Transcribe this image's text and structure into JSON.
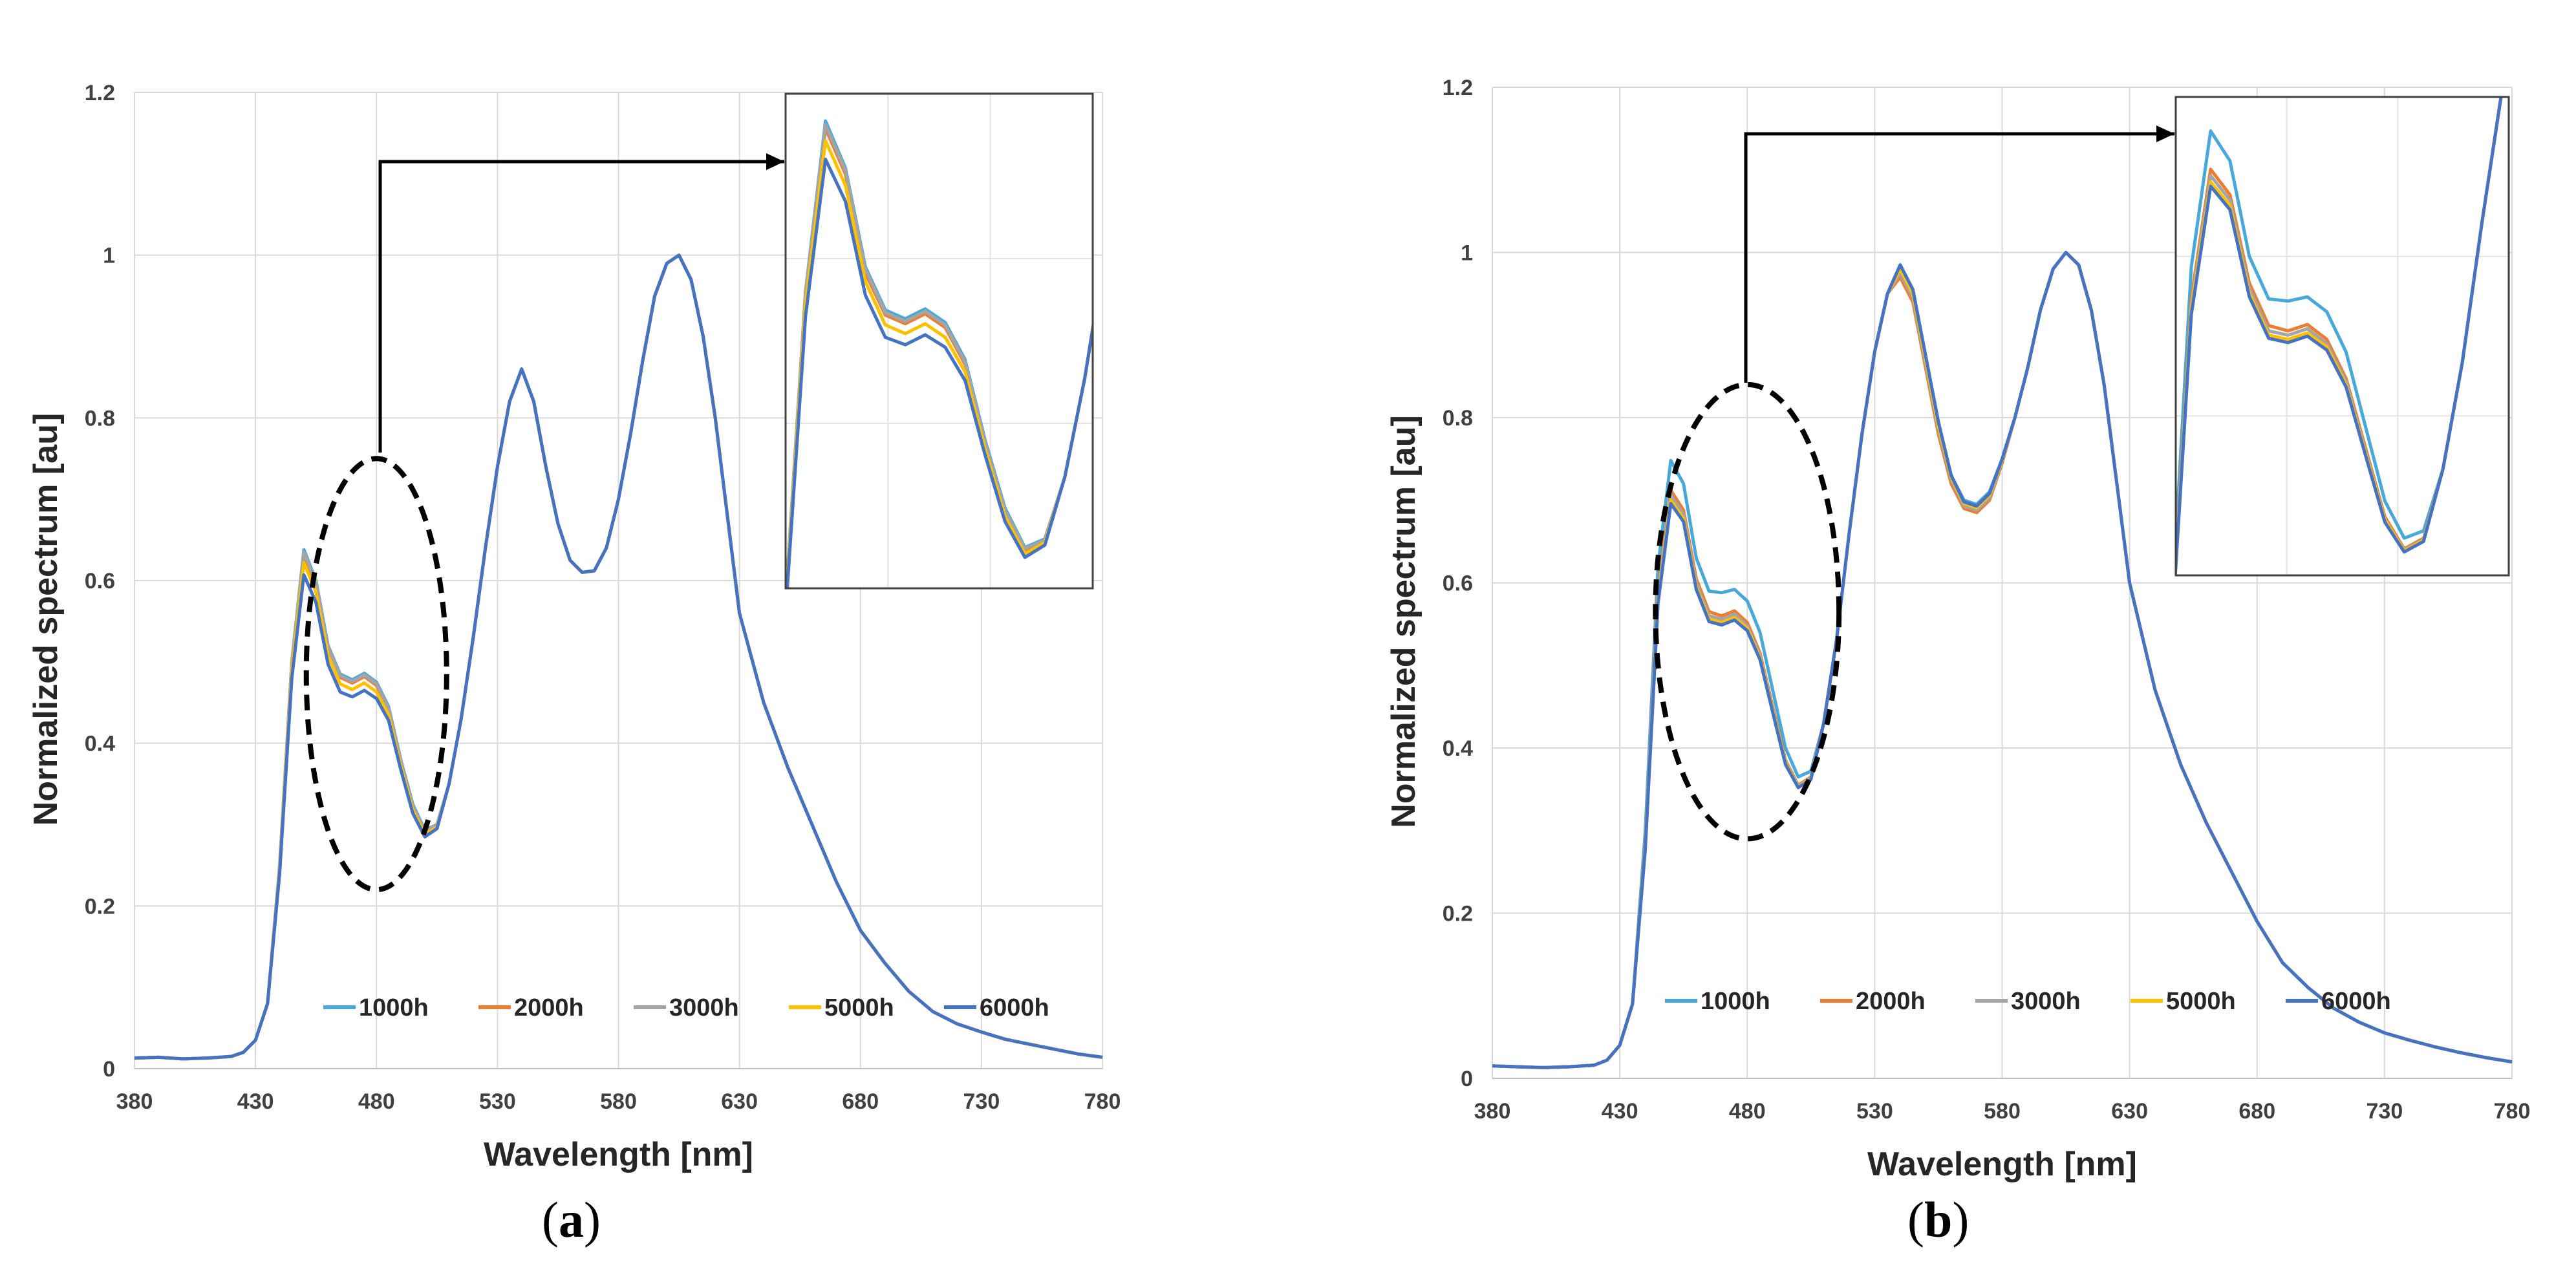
{
  "chart_data": [
    {
      "type": "line",
      "panel": "a",
      "caption_open": "(",
      "caption_letter": "a",
      "caption_close": ")",
      "xlabel": "Wavelength [nm]",
      "ylabel": "Normalized spectrum [au]",
      "xlim": [
        380,
        780
      ],
      "ylim": [
        0,
        1.2
      ],
      "xticks": [
        380,
        430,
        480,
        530,
        580,
        630,
        680,
        730,
        780
      ],
      "yticks": [
        0,
        0.2,
        0.4,
        0.6,
        0.8,
        1,
        1.2
      ],
      "ytick_labels": [
        "0",
        "0.2",
        "0.4",
        "0.6",
        "0.8",
        "1",
        "1.2"
      ],
      "grid": true,
      "legend_position": "bottom-center",
      "inset": {
        "x_range": [
          440,
          517
        ],
        "y_range": [
          0.26,
          0.66
        ],
        "zoom_region": "blue peak 430-530 nm"
      },
      "ellipse": {
        "cx": 480,
        "cy": 0.485,
        "rx": 29,
        "ry": 0.265
      },
      "x": [
        380,
        390,
        400,
        410,
        420,
        425,
        430,
        435,
        440,
        445,
        450,
        455,
        460,
        465,
        470,
        475,
        480,
        485,
        490,
        495,
        500,
        505,
        510,
        515,
        520,
        525,
        530,
        535,
        540,
        545,
        550,
        555,
        560,
        565,
        570,
        575,
        580,
        585,
        590,
        595,
        600,
        605,
        610,
        615,
        620,
        625,
        630,
        640,
        650,
        660,
        670,
        680,
        690,
        700,
        710,
        720,
        730,
        740,
        750,
        760,
        770,
        780
      ],
      "series": [
        {
          "name": "1000h",
          "color": "#47A8DB",
          "values": [
            0.013,
            0.014,
            0.012,
            0.013,
            0.015,
            0.02,
            0.035,
            0.08,
            0.25,
            0.5,
            0.638,
            0.6,
            0.52,
            0.485,
            0.478,
            0.486,
            0.475,
            0.445,
            0.38,
            0.325,
            0.293,
            0.3,
            0.35,
            0.43,
            0.53,
            0.64,
            0.74,
            0.82,
            0.86,
            0.82,
            0.74,
            0.67,
            0.625,
            0.61,
            0.612,
            0.64,
            0.7,
            0.78,
            0.87,
            0.95,
            0.99,
            1.0,
            0.97,
            0.9,
            0.8,
            0.68,
            0.56,
            0.45,
            0.37,
            0.3,
            0.23,
            0.17,
            0.13,
            0.095,
            0.07,
            0.055,
            0.045,
            0.036,
            0.03,
            0.024,
            0.018,
            0.014
          ]
        },
        {
          "name": "2000h",
          "color": "#ED7D31",
          "values": [
            0.013,
            0.014,
            0.012,
            0.013,
            0.015,
            0.02,
            0.035,
            0.08,
            0.248,
            0.497,
            0.632,
            0.595,
            0.515,
            0.481,
            0.474,
            0.482,
            0.471,
            0.441,
            0.377,
            0.322,
            0.291,
            0.298,
            0.35,
            0.43,
            0.53,
            0.64,
            0.74,
            0.82,
            0.86,
            0.82,
            0.74,
            0.67,
            0.625,
            0.61,
            0.612,
            0.64,
            0.7,
            0.78,
            0.87,
            0.95,
            0.99,
            1.0,
            0.97,
            0.9,
            0.8,
            0.68,
            0.56,
            0.45,
            0.37,
            0.3,
            0.23,
            0.17,
            0.13,
            0.095,
            0.07,
            0.055,
            0.045,
            0.036,
            0.03,
            0.024,
            0.018,
            0.014
          ]
        },
        {
          "name": "3000h",
          "color": "#A5A5A5",
          "values": [
            0.013,
            0.014,
            0.012,
            0.013,
            0.015,
            0.02,
            0.035,
            0.08,
            0.249,
            0.499,
            0.635,
            0.598,
            0.518,
            0.483,
            0.476,
            0.484,
            0.473,
            0.443,
            0.378,
            0.323,
            0.292,
            0.299,
            0.35,
            0.43,
            0.53,
            0.64,
            0.74,
            0.82,
            0.86,
            0.82,
            0.74,
            0.67,
            0.625,
            0.61,
            0.612,
            0.64,
            0.7,
            0.78,
            0.87,
            0.95,
            0.99,
            1.0,
            0.97,
            0.9,
            0.8,
            0.68,
            0.56,
            0.45,
            0.37,
            0.3,
            0.23,
            0.17,
            0.13,
            0.095,
            0.07,
            0.055,
            0.045,
            0.036,
            0.03,
            0.024,
            0.018,
            0.014
          ]
        },
        {
          "name": "5000h",
          "color": "#FFC000",
          "values": [
            0.013,
            0.014,
            0.012,
            0.013,
            0.015,
            0.02,
            0.035,
            0.08,
            0.244,
            0.49,
            0.622,
            0.586,
            0.508,
            0.473,
            0.466,
            0.474,
            0.463,
            0.435,
            0.373,
            0.318,
            0.288,
            0.297,
            0.35,
            0.43,
            0.53,
            0.64,
            0.74,
            0.82,
            0.86,
            0.82,
            0.74,
            0.67,
            0.625,
            0.61,
            0.612,
            0.64,
            0.7,
            0.78,
            0.87,
            0.95,
            0.99,
            1.0,
            0.97,
            0.9,
            0.8,
            0.68,
            0.56,
            0.45,
            0.37,
            0.3,
            0.23,
            0.17,
            0.13,
            0.095,
            0.07,
            0.055,
            0.045,
            0.036,
            0.03,
            0.024,
            0.018,
            0.014
          ]
        },
        {
          "name": "6000h",
          "color": "#4472C4",
          "values": [
            0.013,
            0.014,
            0.012,
            0.013,
            0.015,
            0.02,
            0.035,
            0.08,
            0.24,
            0.48,
            0.607,
            0.573,
            0.497,
            0.463,
            0.457,
            0.465,
            0.455,
            0.428,
            0.368,
            0.314,
            0.285,
            0.295,
            0.35,
            0.43,
            0.53,
            0.64,
            0.74,
            0.82,
            0.86,
            0.82,
            0.74,
            0.67,
            0.625,
            0.61,
            0.612,
            0.64,
            0.7,
            0.78,
            0.87,
            0.95,
            0.99,
            1.0,
            0.97,
            0.9,
            0.8,
            0.68,
            0.56,
            0.45,
            0.37,
            0.3,
            0.23,
            0.17,
            0.13,
            0.095,
            0.07,
            0.055,
            0.045,
            0.036,
            0.03,
            0.024,
            0.018,
            0.014
          ]
        }
      ]
    },
    {
      "type": "line",
      "panel": "b",
      "caption_open": "(",
      "caption_letter": "b",
      "caption_close": ")",
      "xlabel": "Wavelength [nm]",
      "ylabel": "Normalized spectrum [au]",
      "xlim": [
        380,
        780
      ],
      "ylim": [
        0,
        1.2
      ],
      "xticks": [
        380,
        430,
        480,
        530,
        580,
        630,
        680,
        730,
        780
      ],
      "yticks": [
        0,
        0.2,
        0.4,
        0.6,
        0.8,
        1,
        1.2
      ],
      "ytick_labels": [
        "0",
        "0.2",
        "0.4",
        "0.6",
        "0.8",
        "1",
        "1.2"
      ],
      "grid": true,
      "legend_position": "bottom-center",
      "inset": {
        "x_range": [
          441,
          527
        ],
        "y_range": [
          0.33,
          0.78
        ],
        "zoom_region": "blue peak 430-530 nm"
      },
      "ellipse": {
        "cx": 480,
        "cy": 0.565,
        "rx": 36,
        "ry": 0.275
      },
      "x": [
        380,
        390,
        400,
        410,
        420,
        425,
        430,
        435,
        440,
        445,
        450,
        455,
        460,
        465,
        470,
        475,
        480,
        485,
        490,
        495,
        500,
        505,
        510,
        515,
        520,
        525,
        530,
        535,
        540,
        545,
        550,
        555,
        560,
        565,
        570,
        575,
        580,
        585,
        590,
        595,
        600,
        605,
        610,
        615,
        620,
        625,
        630,
        640,
        650,
        660,
        670,
        680,
        690,
        700,
        710,
        720,
        730,
        740,
        750,
        760,
        770,
        780
      ],
      "series": [
        {
          "name": "1000h",
          "color": "#47A8DB",
          "values": [
            0.015,
            0.014,
            0.013,
            0.014,
            0.016,
            0.022,
            0.04,
            0.09,
            0.3,
            0.62,
            0.748,
            0.72,
            0.63,
            0.59,
            0.588,
            0.592,
            0.578,
            0.54,
            0.47,
            0.4,
            0.365,
            0.372,
            0.43,
            0.53,
            0.66,
            0.78,
            0.88,
            0.95,
            0.985,
            0.95,
            0.87,
            0.79,
            0.73,
            0.7,
            0.695,
            0.71,
            0.75,
            0.8,
            0.86,
            0.93,
            0.98,
            1.0,
            0.985,
            0.93,
            0.84,
            0.72,
            0.6,
            0.47,
            0.38,
            0.31,
            0.25,
            0.19,
            0.14,
            0.11,
            0.085,
            0.068,
            0.055,
            0.046,
            0.038,
            0.031,
            0.025,
            0.02
          ]
        },
        {
          "name": "2000h",
          "color": "#ED7D31",
          "values": [
            0.015,
            0.014,
            0.013,
            0.014,
            0.016,
            0.022,
            0.04,
            0.09,
            0.285,
            0.59,
            0.712,
            0.688,
            0.605,
            0.565,
            0.56,
            0.566,
            0.552,
            0.515,
            0.45,
            0.385,
            0.355,
            0.365,
            0.43,
            0.53,
            0.66,
            0.78,
            0.88,
            0.95,
            0.97,
            0.94,
            0.86,
            0.78,
            0.72,
            0.69,
            0.685,
            0.7,
            0.745,
            0.8,
            0.86,
            0.93,
            0.98,
            1.0,
            0.985,
            0.93,
            0.84,
            0.72,
            0.6,
            0.47,
            0.38,
            0.31,
            0.25,
            0.19,
            0.14,
            0.11,
            0.085,
            0.068,
            0.055,
            0.046,
            0.038,
            0.031,
            0.025,
            0.02
          ]
        },
        {
          "name": "3000h",
          "color": "#A5A5A5",
          "values": [
            0.015,
            0.014,
            0.013,
            0.014,
            0.016,
            0.022,
            0.04,
            0.09,
            0.283,
            0.585,
            0.706,
            0.683,
            0.6,
            0.56,
            0.556,
            0.562,
            0.548,
            0.512,
            0.447,
            0.383,
            0.354,
            0.364,
            0.43,
            0.53,
            0.66,
            0.78,
            0.88,
            0.95,
            0.975,
            0.945,
            0.865,
            0.785,
            0.725,
            0.693,
            0.688,
            0.703,
            0.747,
            0.8,
            0.86,
            0.93,
            0.98,
            1.0,
            0.985,
            0.93,
            0.84,
            0.72,
            0.6,
            0.47,
            0.38,
            0.31,
            0.25,
            0.19,
            0.14,
            0.11,
            0.085,
            0.068,
            0.055,
            0.046,
            0.038,
            0.031,
            0.025,
            0.02
          ]
        },
        {
          "name": "5000h",
          "color": "#FFC000",
          "values": [
            0.015,
            0.014,
            0.013,
            0.014,
            0.016,
            0.022,
            0.04,
            0.09,
            0.28,
            0.58,
            0.7,
            0.678,
            0.595,
            0.556,
            0.552,
            0.558,
            0.545,
            0.509,
            0.445,
            0.382,
            0.353,
            0.363,
            0.43,
            0.53,
            0.66,
            0.78,
            0.88,
            0.95,
            0.98,
            0.95,
            0.87,
            0.79,
            0.728,
            0.696,
            0.691,
            0.706,
            0.749,
            0.8,
            0.86,
            0.93,
            0.98,
            1.0,
            0.985,
            0.93,
            0.84,
            0.72,
            0.6,
            0.47,
            0.38,
            0.31,
            0.25,
            0.19,
            0.14,
            0.11,
            0.085,
            0.068,
            0.055,
            0.046,
            0.038,
            0.031,
            0.025,
            0.02
          ]
        },
        {
          "name": "6000h",
          "color": "#4472C4",
          "values": [
            0.015,
            0.014,
            0.013,
            0.014,
            0.016,
            0.022,
            0.04,
            0.09,
            0.278,
            0.575,
            0.696,
            0.674,
            0.592,
            0.553,
            0.549,
            0.555,
            0.542,
            0.507,
            0.443,
            0.38,
            0.352,
            0.362,
            0.43,
            0.53,
            0.66,
            0.78,
            0.88,
            0.95,
            0.985,
            0.955,
            0.875,
            0.795,
            0.73,
            0.698,
            0.693,
            0.708,
            0.75,
            0.8,
            0.86,
            0.93,
            0.98,
            1.0,
            0.985,
            0.93,
            0.84,
            0.72,
            0.6,
            0.47,
            0.38,
            0.31,
            0.25,
            0.19,
            0.14,
            0.11,
            0.085,
            0.068,
            0.055,
            0.046,
            0.038,
            0.031,
            0.025,
            0.02
          ]
        }
      ]
    }
  ]
}
